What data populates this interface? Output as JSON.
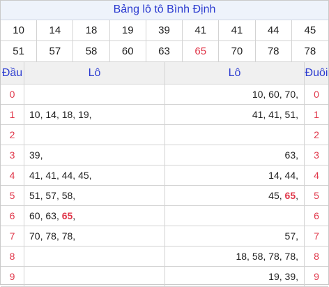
{
  "title": "Bảng lô tô Bình Định",
  "numbers_row1": [
    "10",
    "14",
    "18",
    "19",
    "39",
    "41",
    "41",
    "44",
    "45"
  ],
  "numbers_row2": [
    "51",
    "57",
    "58",
    "60",
    "63",
    "65",
    "70",
    "78",
    "78"
  ],
  "highlight_number": "65",
  "headers": {
    "dau": "Đầu",
    "lo_left": "Lô",
    "lo_right": "Lô",
    "duoi": "Đuôi"
  },
  "rows": [
    {
      "digit": "0",
      "left": "",
      "right": "10, 60, 70,"
    },
    {
      "digit": "1",
      "left": "10, 14, 18, 19,",
      "right": "41, 41, 51,"
    },
    {
      "digit": "2",
      "left": "",
      "right": ""
    },
    {
      "digit": "3",
      "left": "39,",
      "right": "63,"
    },
    {
      "digit": "4",
      "left": "41, 41, 44, 45,",
      "right": "14, 44,"
    },
    {
      "digit": "5",
      "left": "51, 57, 58,",
      "right": "45, 65,"
    },
    {
      "digit": "6",
      "left": "60, 63, 65,",
      "right": ""
    },
    {
      "digit": "7",
      "left": "70, 78, 78,",
      "right": "57,"
    },
    {
      "digit": "8",
      "left": "",
      "right": "18, 58, 78, 78,"
    },
    {
      "digit": "9",
      "left": "",
      "right": "19, 39,"
    }
  ],
  "colors": {
    "title": "#2b3bd0",
    "accent": "#e0374a",
    "header_bg": "#f0f0f0"
  }
}
